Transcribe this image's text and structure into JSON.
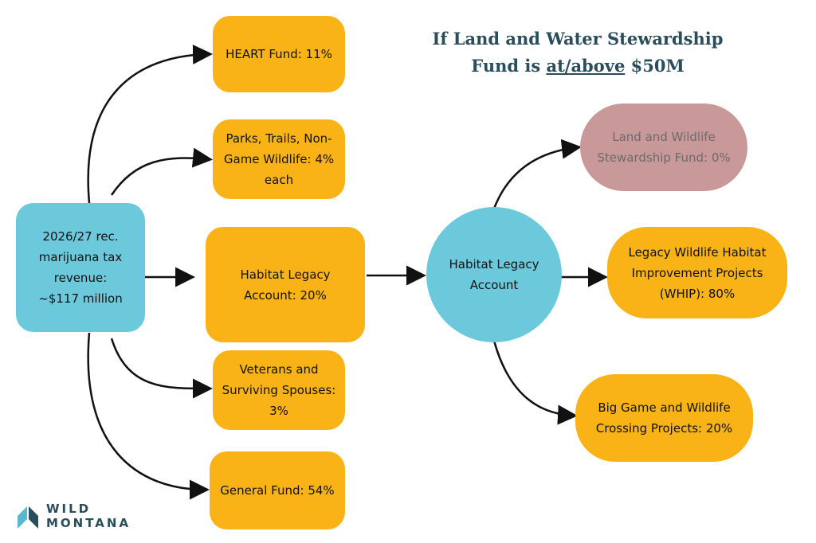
{
  "title": {
    "line1": "If Land and Water Stewardship",
    "line2": [
      "Fund is",
      "at/above",
      "$50M"
    ]
  },
  "nodes": [
    {
      "id": "source",
      "lines": [
        "2026/27 rec.",
        "marijuana tax",
        "revenue:",
        "~$117 million"
      ]
    },
    {
      "id": "heart",
      "lines": [
        "HEART Fund: 11%"
      ]
    },
    {
      "id": "parks",
      "lines": [
        "Parks, Trails, Non-",
        "Game Wildlife: 4%",
        "each"
      ]
    },
    {
      "id": "habitat",
      "lines": [
        "Habitat Legacy",
        "Account: 20%"
      ]
    },
    {
      "id": "veterans",
      "lines": [
        "Veterans and",
        "Surviving Spouses:",
        "3%"
      ]
    },
    {
      "id": "general",
      "lines": [
        "General Fund: 54%"
      ]
    },
    {
      "id": "hla",
      "lines": [
        "Habitat Legacy",
        "Account"
      ]
    },
    {
      "id": "lwsf",
      "lines": [
        "Land and Wildlife",
        "Stewardship Fund: 0%"
      ]
    },
    {
      "id": "whip",
      "lines": [
        "Legacy Wildlife Habitat",
        "Improvement Projects",
        "(WHIP): 80%"
      ]
    },
    {
      "id": "biggame",
      "lines": [
        "Big Game and Wildlife",
        "Crossing Projects: 20%"
      ]
    }
  ],
  "logo": {
    "line1": "WILD",
    "line2": "MONTANA"
  }
}
